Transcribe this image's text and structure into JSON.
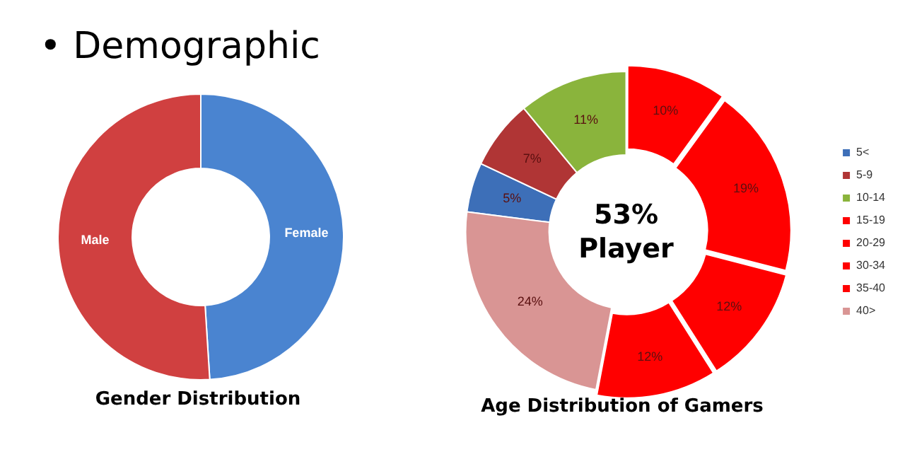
{
  "chart_data": [
    {
      "type": "donut",
      "title": "Gender Distribution",
      "annotations": [
        "• Demographic"
      ],
      "categories": [
        "Female",
        "Male"
      ],
      "values": [
        49,
        51
      ],
      "colors": [
        "#4a84d0",
        "#d04040"
      ],
      "legend": false
    },
    {
      "type": "donut",
      "title": "Age Distribution of Gamers",
      "annotations": [
        "53% Player"
      ],
      "categories": [
        "5<",
        "5-9",
        "10-14",
        "15-19",
        "20-29",
        "30-34",
        "35-40",
        "40>"
      ],
      "values": [
        5,
        7,
        11,
        10,
        19,
        12,
        12,
        24
      ],
      "colors": [
        "#3d6fb8",
        "#b03535",
        "#8ab43c",
        "#ff0000",
        "#ff0000",
        "#ff0000",
        "#ff0000",
        "#d99594"
      ],
      "value_labels": [
        "5%",
        "7%",
        "11%",
        "10%",
        "19%",
        "12%",
        "12%",
        "24%"
      ],
      "legend": "right"
    }
  ]
}
